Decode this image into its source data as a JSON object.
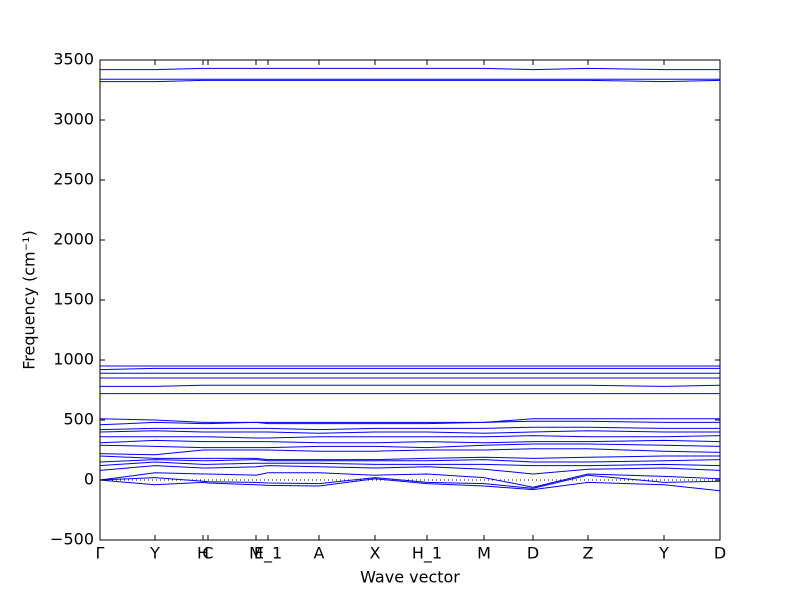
{
  "chart_data": {
    "type": "line",
    "xlabel": "Wave vector",
    "ylabel": "Frequency (cm⁻¹)",
    "x": [
      0,
      0.55,
      1.03,
      1.08,
      1.56,
      1.68,
      2.19,
      2.75,
      3.27,
      3.84,
      4.33,
      4.88,
      5.64,
      6.2
    ],
    "xlim": [
      0,
      6.2
    ],
    "xticks": [
      {
        "value": 0,
        "label": "Γ"
      },
      {
        "value": 0.55,
        "label": "Y"
      },
      {
        "value": 1.03,
        "label": "H"
      },
      {
        "value": 1.08,
        "label": "C"
      },
      {
        "value": 1.56,
        "label": "M"
      },
      {
        "value": 1.68,
        "label": "E_1"
      },
      {
        "value": 2.19,
        "label": "A"
      },
      {
        "value": 2.75,
        "label": "X"
      },
      {
        "value": 3.27,
        "label": "H_1"
      },
      {
        "value": 3.84,
        "label": "M"
      },
      {
        "value": 4.33,
        "label": "D"
      },
      {
        "value": 4.88,
        "label": "Z"
      },
      {
        "value": 5.64,
        "label": "Y"
      },
      {
        "value": 6.2,
        "label": "D"
      }
    ],
    "ylim": [
      -500,
      3500
    ],
    "yticks": [
      {
        "value": -500,
        "label": "−500"
      },
      0,
      500,
      1000,
      1500,
      2000,
      2500,
      3000,
      3500
    ],
    "color": "#0000ff",
    "zero_line": true,
    "series": [
      {
        "values": [
          0,
          -40,
          -20,
          -25,
          -40,
          -45,
          -50,
          10,
          -30,
          -50,
          -80,
          -20,
          -40,
          -90
        ]
      },
      {
        "values": [
          0,
          20,
          -10,
          -15,
          -20,
          -25,
          -30,
          20,
          -20,
          -30,
          -70,
          40,
          -20,
          -10
        ]
      },
      {
        "values": [
          0,
          60,
          50,
          50,
          40,
          60,
          60,
          40,
          50,
          20,
          -60,
          50,
          30,
          10
        ]
      },
      {
        "values": [
          80,
          120,
          100,
          100,
          110,
          120,
          110,
          100,
          110,
          90,
          50,
          90,
          100,
          80
        ]
      },
      {
        "values": [
          120,
          150,
          130,
          130,
          140,
          140,
          140,
          130,
          130,
          130,
          120,
          120,
          130,
          120
        ]
      },
      {
        "values": [
          150,
          170,
          160,
          160,
          170,
          160,
          160,
          160,
          160,
          170,
          150,
          150,
          160,
          170
        ]
      },
      {
        "values": [
          200,
          180,
          180,
          180,
          180,
          170,
          170,
          170,
          180,
          190,
          180,
          190,
          200,
          200
        ]
      },
      {
        "values": [
          220,
          210,
          250,
          250,
          250,
          250,
          240,
          240,
          250,
          250,
          260,
          260,
          240,
          230
        ]
      },
      {
        "values": [
          290,
          280,
          270,
          270,
          270,
          270,
          280,
          280,
          270,
          290,
          300,
          300,
          290,
          280
        ]
      },
      {
        "values": [
          310,
          330,
          320,
          320,
          320,
          320,
          310,
          310,
          320,
          310,
          320,
          320,
          330,
          320
        ]
      },
      {
        "values": [
          360,
          360,
          360,
          360,
          350,
          350,
          360,
          360,
          360,
          360,
          370,
          360,
          360,
          370
        ]
      },
      {
        "values": [
          400,
          410,
          400,
          400,
          400,
          400,
          390,
          400,
          400,
          390,
          400,
          410,
          400,
          400
        ]
      },
      {
        "values": [
          420,
          430,
          430,
          430,
          430,
          430,
          420,
          430,
          430,
          430,
          440,
          440,
          430,
          430
        ]
      },
      {
        "values": [
          460,
          480,
          470,
          470,
          480,
          470,
          470,
          470,
          470,
          480,
          490,
          490,
          480,
          480
        ]
      },
      {
        "values": [
          510,
          500,
          480,
          480,
          480,
          480,
          480,
          480,
          480,
          480,
          510,
          510,
          510,
          510
        ]
      },
      {
        "values": [
          720,
          720,
          720,
          720,
          720,
          720,
          720,
          720,
          720,
          720,
          720,
          720,
          720,
          720
        ]
      },
      {
        "values": [
          780,
          780,
          790,
          790,
          790,
          790,
          790,
          790,
          790,
          790,
          790,
          790,
          780,
          790
        ]
      },
      {
        "values": [
          850,
          850,
          850,
          850,
          850,
          850,
          850,
          850,
          850,
          850,
          850,
          850,
          850,
          850
        ]
      },
      {
        "values": [
          890,
          890,
          890,
          890,
          890,
          890,
          890,
          890,
          890,
          890,
          890,
          890,
          890,
          890
        ]
      },
      {
        "values": [
          920,
          930,
          930,
          930,
          930,
          930,
          930,
          930,
          930,
          930,
          930,
          930,
          930,
          930
        ]
      },
      {
        "values": [
          950,
          950,
          950,
          950,
          950,
          950,
          950,
          950,
          950,
          950,
          950,
          950,
          950,
          950
        ]
      },
      {
        "values": [
          3320,
          3320,
          3330,
          3330,
          3330,
          3330,
          3330,
          3330,
          3330,
          3330,
          3330,
          3330,
          3320,
          3330
        ]
      },
      {
        "values": [
          3340,
          3340,
          3340,
          3340,
          3340,
          3340,
          3340,
          3340,
          3340,
          3340,
          3340,
          3340,
          3340,
          3340
        ]
      },
      {
        "values": [
          3420,
          3420,
          3430,
          3430,
          3430,
          3430,
          3430,
          3430,
          3430,
          3430,
          3420,
          3430,
          3420,
          3420
        ]
      }
    ]
  }
}
